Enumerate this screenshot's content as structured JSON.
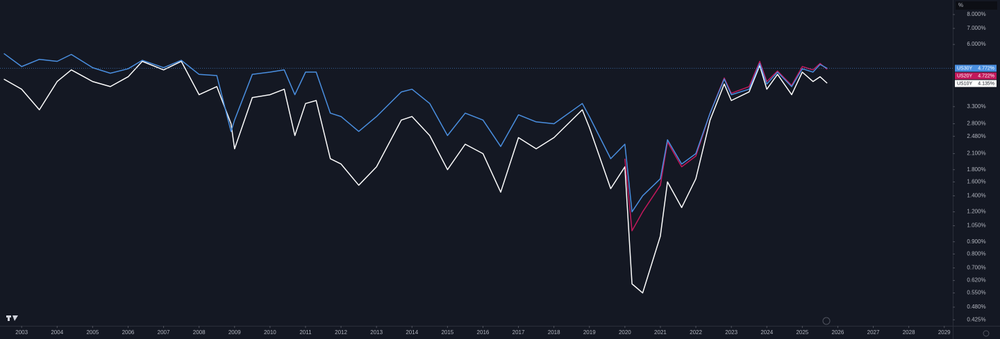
{
  "chart_data": {
    "type": "line",
    "y_unit": "%",
    "log_scale": true,
    "grid": false,
    "xlim": [
      2002.39,
      2029.24
    ],
    "xticks": [
      2003,
      2004,
      2005,
      2006,
      2007,
      2008,
      2009,
      2010,
      2011,
      2012,
      2013,
      2014,
      2015,
      2016,
      2017,
      2018,
      2019,
      2020,
      2021,
      2022,
      2023,
      2024,
      2025,
      2026,
      2027,
      2028,
      2029
    ],
    "ylim": [
      0.401,
      9.2
    ],
    "yticks": [
      {
        "value": 8,
        "label": "8.000%"
      },
      {
        "value": 7,
        "label": "7.000%"
      },
      {
        "value": 6,
        "label": "6.000%"
      },
      {
        "value": 3.3,
        "label": "3.300%"
      },
      {
        "value": 2.8,
        "label": "2.800%"
      },
      {
        "value": 2.48,
        "label": "2.480%"
      },
      {
        "value": 2.1,
        "label": "2.100%"
      },
      {
        "value": 1.8,
        "label": "1.800%"
      },
      {
        "value": 1.6,
        "label": "1.600%"
      },
      {
        "value": 1.4,
        "label": "1.400%"
      },
      {
        "value": 1.2,
        "label": "1.200%"
      },
      {
        "value": 1.05,
        "label": "1.050%"
      },
      {
        "value": 0.9,
        "label": "0.900%"
      },
      {
        "value": 0.8,
        "label": "0.800%"
      },
      {
        "value": 0.7,
        "label": "0.700%"
      },
      {
        "value": 0.62,
        "label": "0.620%"
      },
      {
        "value": 0.55,
        "label": "0.550%"
      },
      {
        "value": 0.48,
        "label": "0.480%"
      },
      {
        "value": 0.425,
        "label": "0.425%"
      }
    ],
    "x": [
      2002.5,
      2003.0,
      2003.5,
      2004.0,
      2004.4,
      2005.0,
      2005.5,
      2006.0,
      2006.4,
      2007.0,
      2007.5,
      2008.0,
      2008.5,
      2008.9,
      2009.0,
      2009.5,
      2010.0,
      2010.4,
      2010.7,
      2011.0,
      2011.3,
      2011.7,
      2012.0,
      2012.5,
      2013.0,
      2013.7,
      2014.0,
      2014.5,
      2015.0,
      2015.5,
      2016.0,
      2016.5,
      2017.0,
      2017.5,
      2018.0,
      2018.8,
      2019.0,
      2019.6,
      2020.0,
      2020.2,
      2020.5,
      2021.0,
      2021.2,
      2021.6,
      2022.0,
      2022.4,
      2022.8,
      2023.0,
      2023.5,
      2023.8,
      2024.0,
      2024.3,
      2024.7,
      2025.0,
      2025.3,
      2025.5,
      2025.7
    ],
    "series": [
      {
        "name": "US30Y",
        "color": "#4a8fe0",
        "last_label": "4.772%",
        "values": [
          5.5,
          4.85,
          5.2,
          5.1,
          5.45,
          4.8,
          4.55,
          4.75,
          5.15,
          4.8,
          5.15,
          4.5,
          4.45,
          2.6,
          2.9,
          4.5,
          4.6,
          4.7,
          3.7,
          4.6,
          4.6,
          3.1,
          3.0,
          2.6,
          3.0,
          3.8,
          3.9,
          3.4,
          2.5,
          3.1,
          2.9,
          2.25,
          3.05,
          2.85,
          2.8,
          3.4,
          3.0,
          2.0,
          2.3,
          1.2,
          1.4,
          1.65,
          2.4,
          1.9,
          2.1,
          3.1,
          4.3,
          3.7,
          3.9,
          5.0,
          4.1,
          4.6,
          4.0,
          4.75,
          4.6,
          4.95,
          4.772
        ]
      },
      {
        "name": "US20Y",
        "color": "#c2185b",
        "last_label": "4.722%",
        "values": [
          null,
          null,
          null,
          null,
          null,
          null,
          null,
          null,
          null,
          null,
          null,
          null,
          null,
          null,
          null,
          null,
          null,
          null,
          null,
          null,
          null,
          null,
          null,
          null,
          null,
          null,
          null,
          null,
          null,
          null,
          null,
          null,
          null,
          null,
          null,
          null,
          null,
          null,
          2.0,
          1.0,
          1.2,
          1.55,
          2.35,
          1.85,
          2.05,
          3.1,
          4.35,
          3.75,
          4.0,
          5.1,
          4.2,
          4.65,
          4.05,
          4.85,
          4.7,
          5.0,
          4.722
        ]
      },
      {
        "name": "US10Y",
        "color": "#ffffff",
        "last_label": "4.135%",
        "values": [
          4.3,
          3.9,
          3.2,
          4.2,
          4.7,
          4.2,
          4.0,
          4.4,
          5.1,
          4.7,
          5.1,
          3.7,
          4.0,
          2.8,
          2.2,
          3.6,
          3.7,
          3.9,
          2.5,
          3.4,
          3.5,
          2.0,
          1.9,
          1.55,
          1.85,
          2.9,
          3.0,
          2.5,
          1.8,
          2.3,
          2.1,
          1.45,
          2.45,
          2.2,
          2.45,
          3.2,
          2.7,
          1.5,
          1.85,
          0.6,
          0.55,
          0.95,
          1.6,
          1.25,
          1.65,
          2.9,
          4.1,
          3.5,
          3.8,
          4.9,
          3.9,
          4.5,
          3.7,
          4.6,
          4.2,
          4.4,
          4.135
        ]
      }
    ]
  }
}
